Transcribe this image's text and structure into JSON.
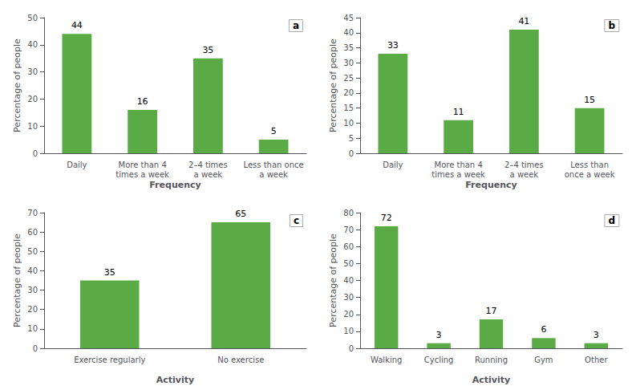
{
  "chart_data": [
    {
      "type": "bar",
      "title": "a",
      "categories": [
        "Daily",
        "More than 4\ntimes a week",
        "2–4 times\na week",
        "Less than once\na week"
      ],
      "values": [
        44,
        16,
        35,
        5
      ],
      "color": "#5aab46",
      "ylim": [
        0,
        50
      ],
      "yticks": [
        0,
        10,
        20,
        30,
        40,
        50
      ],
      "xlabel": "Frequency",
      "ylabel": "Percentage of people",
      "data_labels": true,
      "grid": false
    },
    {
      "type": "bar",
      "title": "b",
      "categories": [
        "Daily",
        "More than 4\ntimes a week",
        "2–4 times\na week",
        "Less than\nonce a week"
      ],
      "values": [
        33,
        11,
        41,
        15
      ],
      "color": "#5aab46",
      "ylim": [
        0,
        45
      ],
      "yticks": [
        0,
        5,
        10,
        15,
        20,
        25,
        30,
        35,
        40,
        45
      ],
      "xlabel": "Frequency",
      "ylabel": "Percentage of people",
      "data_labels": true,
      "grid": false
    },
    {
      "type": "bar",
      "title": "c",
      "categories": [
        "Exercise regularly",
        "No exercise"
      ],
      "values": [
        35,
        65
      ],
      "color": "#5aab46",
      "ylim": [
        0,
        70
      ],
      "yticks": [
        0,
        10,
        20,
        30,
        40,
        50,
        60,
        70
      ],
      "xlabel": "Activity",
      "ylabel": "Percentage of people",
      "data_labels": true,
      "grid": false
    },
    {
      "type": "bar",
      "title": "d",
      "categories": [
        "Walking",
        "Cycling",
        "Running",
        "Gym",
        "Other"
      ],
      "values": [
        72,
        3,
        17,
        6,
        3
      ],
      "color": "#5aab46",
      "ylim": [
        0,
        80
      ],
      "yticks": [
        0,
        10,
        20,
        30,
        40,
        50,
        60,
        70,
        80
      ],
      "xlabel": "Activity",
      "ylabel": "Percentage of people",
      "data_labels": true,
      "grid": false
    }
  ]
}
